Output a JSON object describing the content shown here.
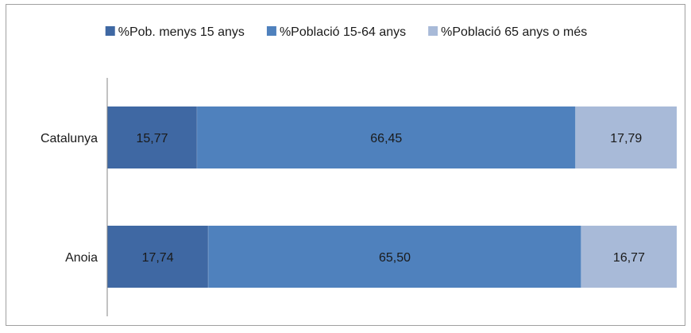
{
  "chart_data": {
    "type": "bar",
    "orientation": "horizontal",
    "stacked": true,
    "categories": [
      "Catalunya",
      "Anoia"
    ],
    "series": [
      {
        "name": "%Pob. menys 15 anys",
        "values": [
          15.77,
          17.74
        ],
        "labels": [
          "15,77",
          "17,74"
        ],
        "color": "#3f68a3"
      },
      {
        "name": "%Població 15-64 anys",
        "values": [
          66.45,
          65.5
        ],
        "labels": [
          "66,45",
          "65,50"
        ],
        "color": "#4f81bd"
      },
      {
        "name": "%Població 65 anys o més",
        "values": [
          17.79,
          16.77
        ],
        "labels": [
          "17,79",
          "16,77"
        ],
        "color": "#a8bad8"
      }
    ],
    "xlim": [
      0,
      100
    ],
    "grid": false,
    "legend_position": "top"
  }
}
